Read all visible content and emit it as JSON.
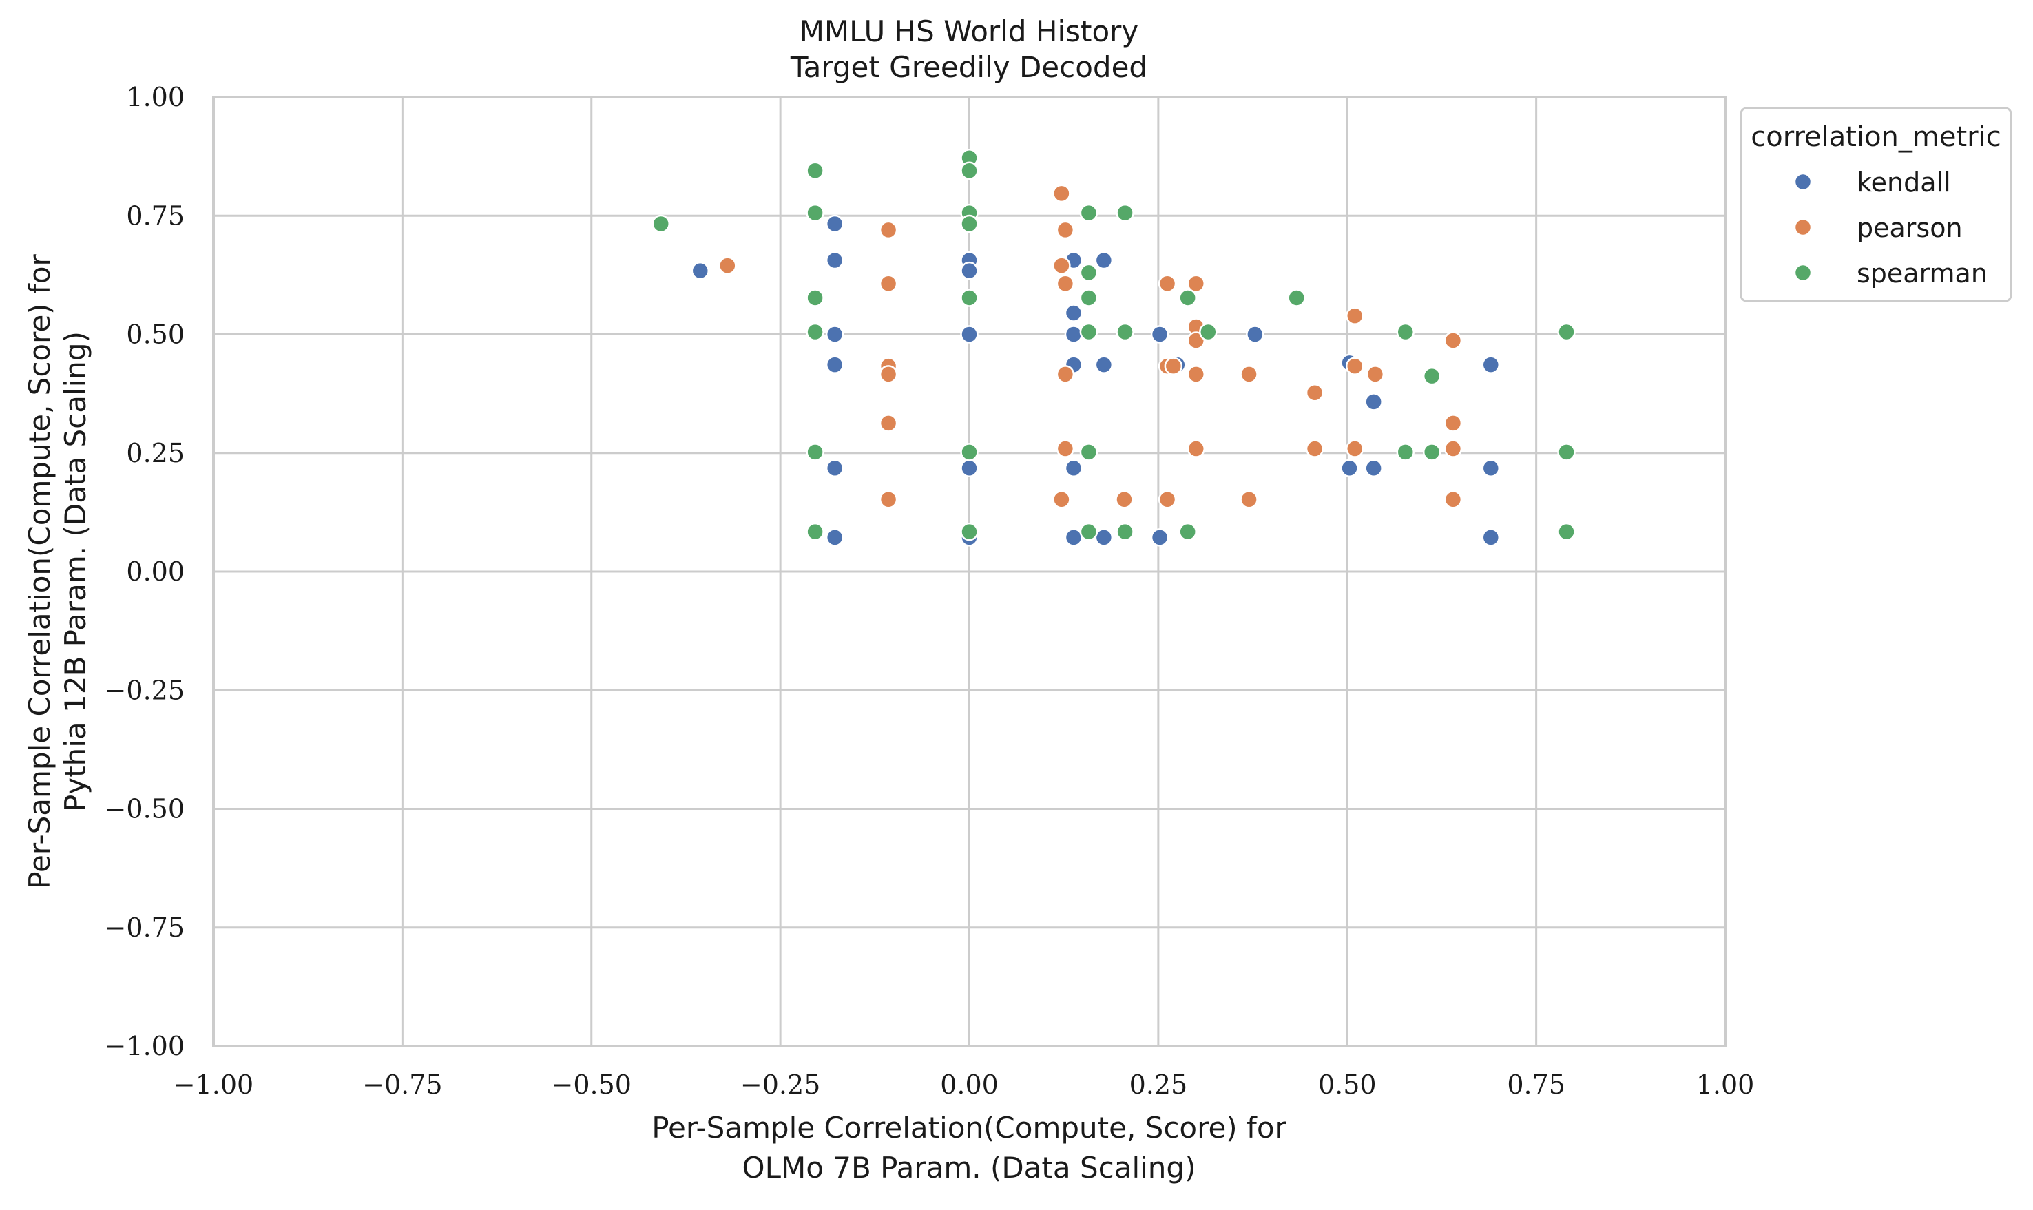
{
  "chart_data": {
    "type": "scatter",
    "title": "MMLU HS World History",
    "subtitle": "Target Greedily Decoded",
    "xlabel": [
      "Per-Sample Correlation(Compute, Score) for",
      "OLMo 7B Param. (Data Scaling)"
    ],
    "ylabel": [
      "Per-Sample Correlation(Compute, Score) for",
      "Pythia 12B Param. (Data Scaling)"
    ],
    "xlim": [
      -1.0,
      1.0
    ],
    "ylim": [
      -1.0,
      1.0
    ],
    "xticks": [
      -1.0,
      -0.75,
      -0.5,
      -0.25,
      0.0,
      0.25,
      0.5,
      0.75,
      1.0
    ],
    "yticks": [
      -1.0,
      -0.75,
      -0.5,
      -0.25,
      0.0,
      0.25,
      0.5,
      0.75,
      1.0
    ],
    "xtick_labels": [
      "−1.00",
      "−0.75",
      "−0.50",
      "−0.25",
      "0.00",
      "0.25",
      "0.50",
      "0.75",
      "1.00"
    ],
    "ytick_labels": [
      "−1.00",
      "−0.75",
      "−0.50",
      "−0.25",
      "0.00",
      "0.25",
      "0.50",
      "0.75",
      "1.00"
    ],
    "grid": true,
    "legend": {
      "title": "correlation_metric",
      "placement": "outside-upper-right"
    },
    "series": [
      {
        "name": "kendall",
        "color": "#4C72B0",
        "points": [
          [
            -0.356,
            0.634
          ],
          [
            -0.178,
            0.733
          ],
          [
            -0.178,
            0.656
          ],
          [
            -0.178,
            0.5
          ],
          [
            -0.178,
            0.436
          ],
          [
            -0.178,
            0.218
          ],
          [
            -0.178,
            0.072
          ],
          [
            0.0,
            0.656
          ],
          [
            0.0,
            0.634
          ],
          [
            0.0,
            0.5
          ],
          [
            0.0,
            0.218
          ],
          [
            0.0,
            0.072
          ],
          [
            0.138,
            0.656
          ],
          [
            0.138,
            0.545
          ],
          [
            0.138,
            0.5
          ],
          [
            0.138,
            0.436
          ],
          [
            0.138,
            0.218
          ],
          [
            0.138,
            0.072
          ],
          [
            0.178,
            0.656
          ],
          [
            0.178,
            0.436
          ],
          [
            0.178,
            0.072
          ],
          [
            0.252,
            0.5
          ],
          [
            0.252,
            0.072
          ],
          [
            0.275,
            0.436
          ],
          [
            0.378,
            0.5
          ],
          [
            0.503,
            0.44
          ],
          [
            0.503,
            0.218
          ],
          [
            0.535,
            0.358
          ],
          [
            0.535,
            0.218
          ],
          [
            0.69,
            0.436
          ],
          [
            0.69,
            0.218
          ],
          [
            0.69,
            0.072
          ]
        ]
      },
      {
        "name": "pearson",
        "color": "#DD8452",
        "points": [
          [
            -0.32,
            0.645
          ],
          [
            -0.107,
            0.72
          ],
          [
            -0.107,
            0.607
          ],
          [
            -0.107,
            0.433
          ],
          [
            -0.107,
            0.416
          ],
          [
            -0.107,
            0.313
          ],
          [
            -0.107,
            0.152
          ],
          [
            0.122,
            0.797
          ],
          [
            0.127,
            0.72
          ],
          [
            0.122,
            0.645
          ],
          [
            0.127,
            0.607
          ],
          [
            0.127,
            0.416
          ],
          [
            0.127,
            0.259
          ],
          [
            0.122,
            0.152
          ],
          [
            0.205,
            0.152
          ],
          [
            0.262,
            0.607
          ],
          [
            0.262,
            0.433
          ],
          [
            0.27,
            0.433
          ],
          [
            0.262,
            0.152
          ],
          [
            0.3,
            0.607
          ],
          [
            0.3,
            0.516
          ],
          [
            0.3,
            0.487
          ],
          [
            0.3,
            0.416
          ],
          [
            0.3,
            0.259
          ],
          [
            0.37,
            0.416
          ],
          [
            0.37,
            0.152
          ],
          [
            0.457,
            0.377
          ],
          [
            0.457,
            0.259
          ],
          [
            0.51,
            0.539
          ],
          [
            0.51,
            0.433
          ],
          [
            0.51,
            0.259
          ],
          [
            0.537,
            0.416
          ],
          [
            0.64,
            0.487
          ],
          [
            0.64,
            0.313
          ],
          [
            0.64,
            0.259
          ],
          [
            0.64,
            0.152
          ]
        ]
      },
      {
        "name": "spearman",
        "color": "#55A868",
        "points": [
          [
            -0.408,
            0.733
          ],
          [
            -0.204,
            0.845
          ],
          [
            -0.204,
            0.756
          ],
          [
            -0.204,
            0.577
          ],
          [
            -0.204,
            0.505
          ],
          [
            -0.204,
            0.252
          ],
          [
            -0.204,
            0.084
          ],
          [
            0.0,
            0.872
          ],
          [
            0.0,
            0.845
          ],
          [
            0.0,
            0.756
          ],
          [
            0.0,
            0.733
          ],
          [
            0.0,
            0.577
          ],
          [
            0.0,
            0.252
          ],
          [
            0.0,
            0.084
          ],
          [
            0.158,
            0.756
          ],
          [
            0.158,
            0.63
          ],
          [
            0.158,
            0.577
          ],
          [
            0.158,
            0.505
          ],
          [
            0.158,
            0.252
          ],
          [
            0.158,
            0.084
          ],
          [
            0.206,
            0.756
          ],
          [
            0.206,
            0.505
          ],
          [
            0.206,
            0.084
          ],
          [
            0.289,
            0.577
          ],
          [
            0.289,
            0.084
          ],
          [
            0.316,
            0.505
          ],
          [
            0.433,
            0.577
          ],
          [
            0.577,
            0.505
          ],
          [
            0.577,
            0.252
          ],
          [
            0.612,
            0.412
          ],
          [
            0.612,
            0.252
          ],
          [
            0.79,
            0.505
          ],
          [
            0.79,
            0.252
          ],
          [
            0.79,
            0.084
          ]
        ]
      }
    ]
  }
}
